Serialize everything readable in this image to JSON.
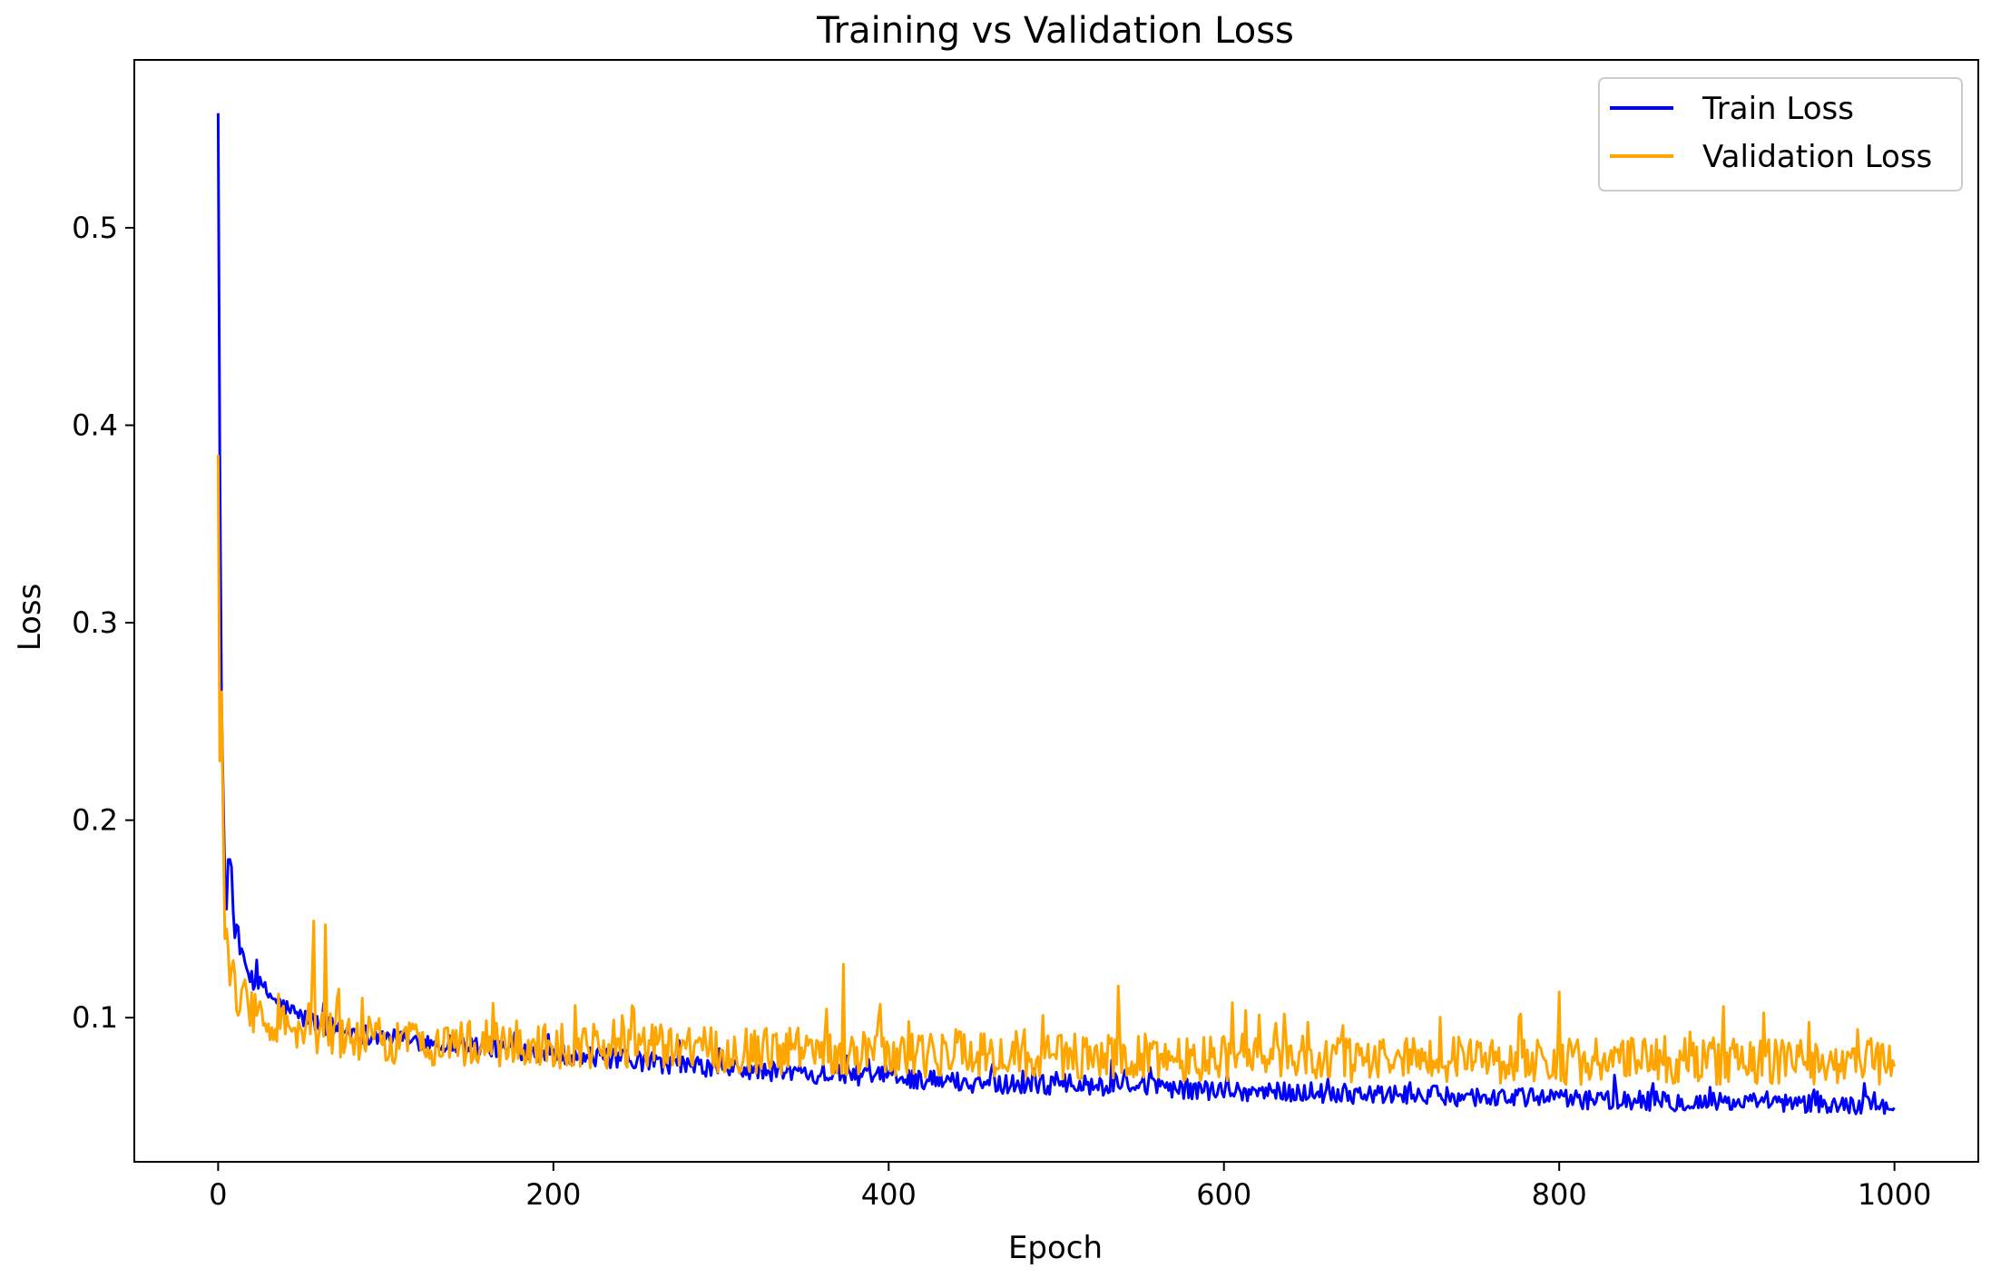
{
  "chart_data": {
    "type": "line",
    "title": "Training vs Validation Loss",
    "xlabel": "Epoch",
    "ylabel": "Loss",
    "xlim": [
      -50,
      1050
    ],
    "ylim": [
      0.027,
      0.585
    ],
    "xticks": [
      0,
      200,
      400,
      600,
      800,
      1000
    ],
    "xtick_labels": [
      "0",
      "200",
      "400",
      "600",
      "800",
      "1000"
    ],
    "yticks": [
      0.1,
      0.2,
      0.3,
      0.4,
      0.5
    ],
    "ytick_labels": [
      "0.1",
      "0.2",
      "0.3",
      "0.4",
      "0.5"
    ],
    "grid": false,
    "legend_position": "top-right",
    "series": [
      {
        "name": "Train Loss",
        "color": "#0000ff",
        "key_points": {
          "x": [
            0,
            1,
            2,
            3,
            4,
            5,
            6,
            7,
            8,
            10,
            12,
            15,
            20,
            30,
            40,
            50,
            60,
            80,
            100,
            150,
            200,
            250,
            300,
            350,
            400,
            450,
            500,
            550,
            600,
            650,
            700,
            750,
            800,
            850,
            900,
            950,
            1000
          ],
          "y": [
            0.558,
            0.385,
            0.26,
            0.215,
            0.17,
            0.155,
            0.18,
            0.18,
            0.175,
            0.14,
            0.135,
            0.128,
            0.12,
            0.112,
            0.105,
            0.1,
            0.097,
            0.093,
            0.09,
            0.086,
            0.082,
            0.078,
            0.074,
            0.072,
            0.07,
            0.067,
            0.066,
            0.065,
            0.063,
            0.062,
            0.061,
            0.06,
            0.059,
            0.058,
            0.057,
            0.056,
            0.055
          ]
        },
        "noise_amplitude": 0.005
      },
      {
        "name": "Validation Loss",
        "color": "#ffa500",
        "key_points": {
          "x": [
            0,
            1,
            2,
            3,
            4,
            5,
            6,
            8,
            10,
            15,
            20,
            30,
            40,
            50,
            60,
            80,
            100,
            150,
            200,
            250,
            300,
            350,
            400,
            450,
            500,
            550,
            600,
            650,
            700,
            750,
            800,
            850,
            900,
            950,
            1000
          ],
          "y": [
            0.385,
            0.23,
            0.265,
            0.2,
            0.14,
            0.145,
            0.135,
            0.12,
            0.115,
            0.11,
            0.105,
            0.1,
            0.095,
            0.093,
            0.092,
            0.09,
            0.088,
            0.087,
            0.086,
            0.085,
            0.084,
            0.083,
            0.082,
            0.081,
            0.08,
            0.08,
            0.08,
            0.079,
            0.079,
            0.079,
            0.078,
            0.078,
            0.078,
            0.078,
            0.078
          ]
        },
        "noise_amplitude": 0.012,
        "spikes": [
          {
            "x": 57,
            "y": 0.149
          },
          {
            "x": 64,
            "y": 0.147
          },
          {
            "x": 373,
            "y": 0.127
          },
          {
            "x": 537,
            "y": 0.116
          },
          {
            "x": 800,
            "y": 0.113
          }
        ]
      }
    ]
  }
}
